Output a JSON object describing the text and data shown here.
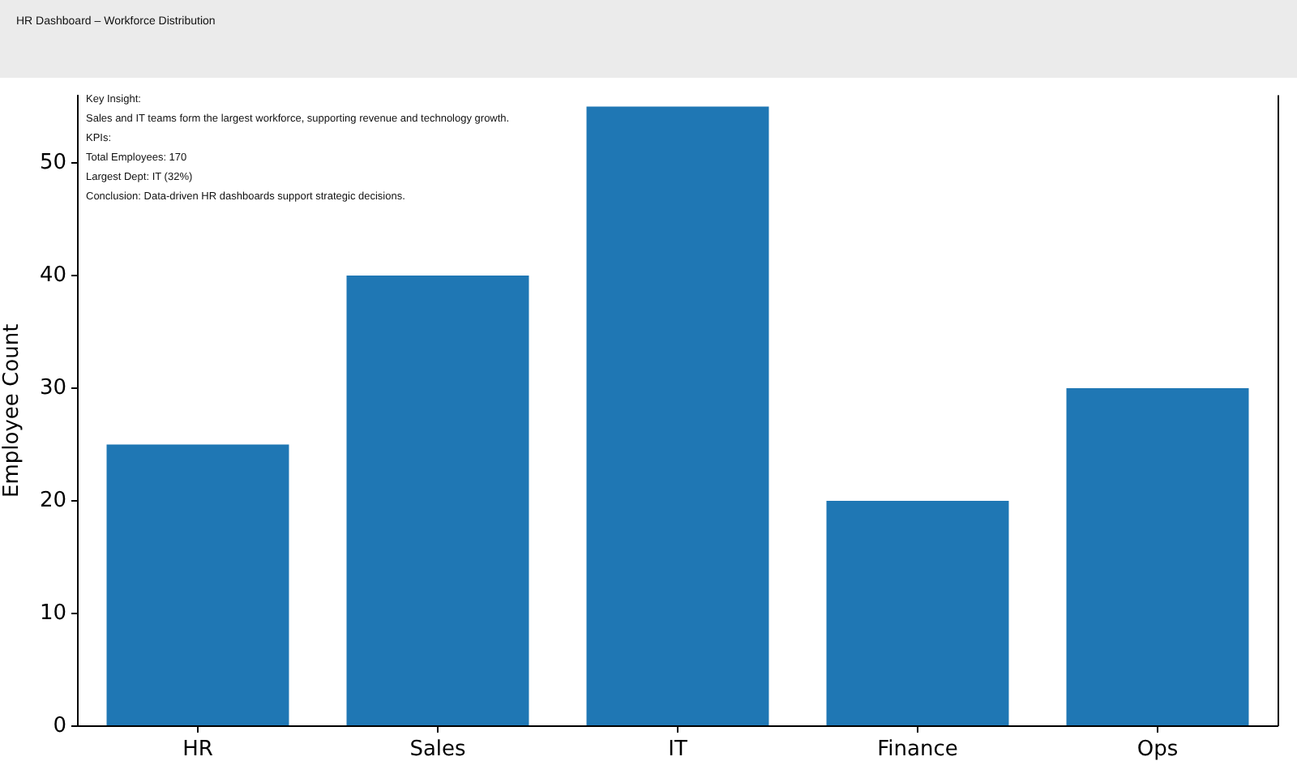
{
  "chart_data": {
    "type": "bar",
    "title": "HR Dashboard – Workforce Distribution",
    "ylabel": "Employee Count",
    "categories": [
      "HR",
      "Sales",
      "IT",
      "Finance",
      "Ops"
    ],
    "values": [
      25,
      40,
      55,
      20,
      30
    ],
    "color": "#1f77b4",
    "ylim": [
      0,
      56
    ],
    "yticks": [
      0,
      10,
      20,
      30,
      40,
      50
    ],
    "grid": false,
    "annotations": [
      "Key Insight:",
      "Sales and IT teams form the largest workforce, supporting revenue and technology growth.",
      "KPIs:",
      "Total Employees: 170",
      "Largest Dept: IT (32%)",
      "Conclusion: Data-driven HR dashboards support strategic decisions."
    ]
  }
}
